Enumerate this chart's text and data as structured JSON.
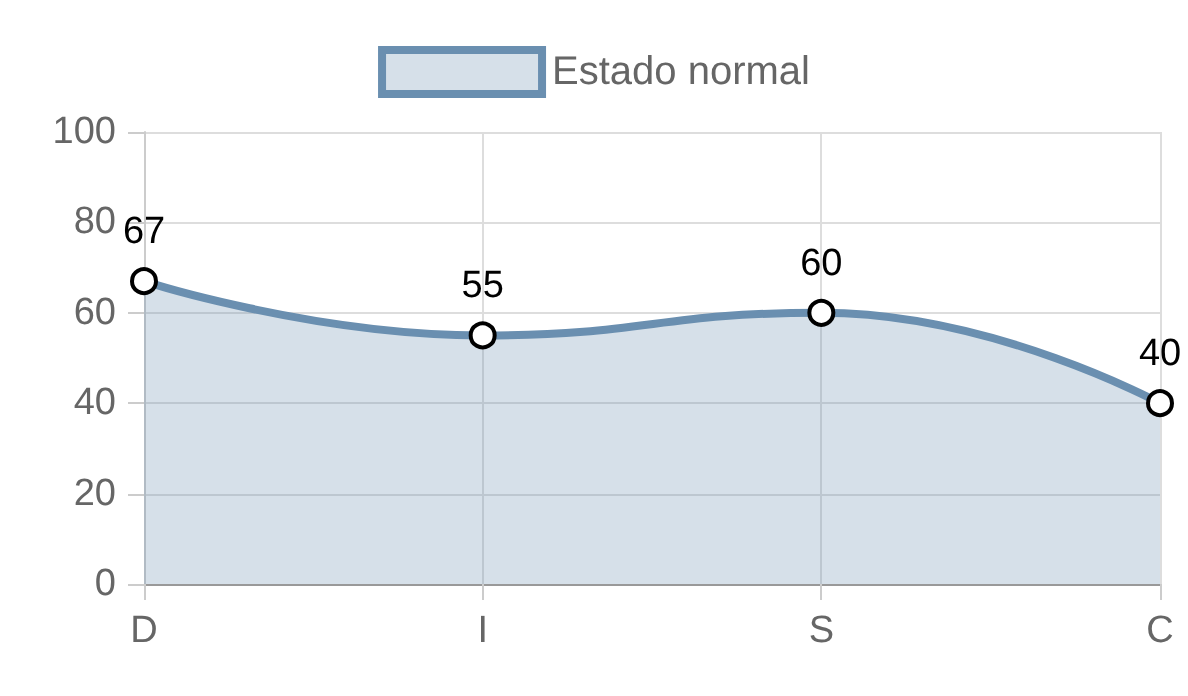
{
  "chart_data": {
    "type": "area",
    "categories": [
      "D",
      "I",
      "S",
      "C"
    ],
    "series": [
      {
        "name": "Estado normal",
        "color": "#6a8fb0",
        "values": [
          67,
          55,
          60,
          40
        ]
      }
    ],
    "ylim": [
      0,
      100
    ],
    "yticks": [
      0,
      20,
      40,
      60,
      80,
      100
    ],
    "grid": true,
    "legend": "top",
    "marker": "circle",
    "data_labels": true,
    "line_style": "solid"
  }
}
